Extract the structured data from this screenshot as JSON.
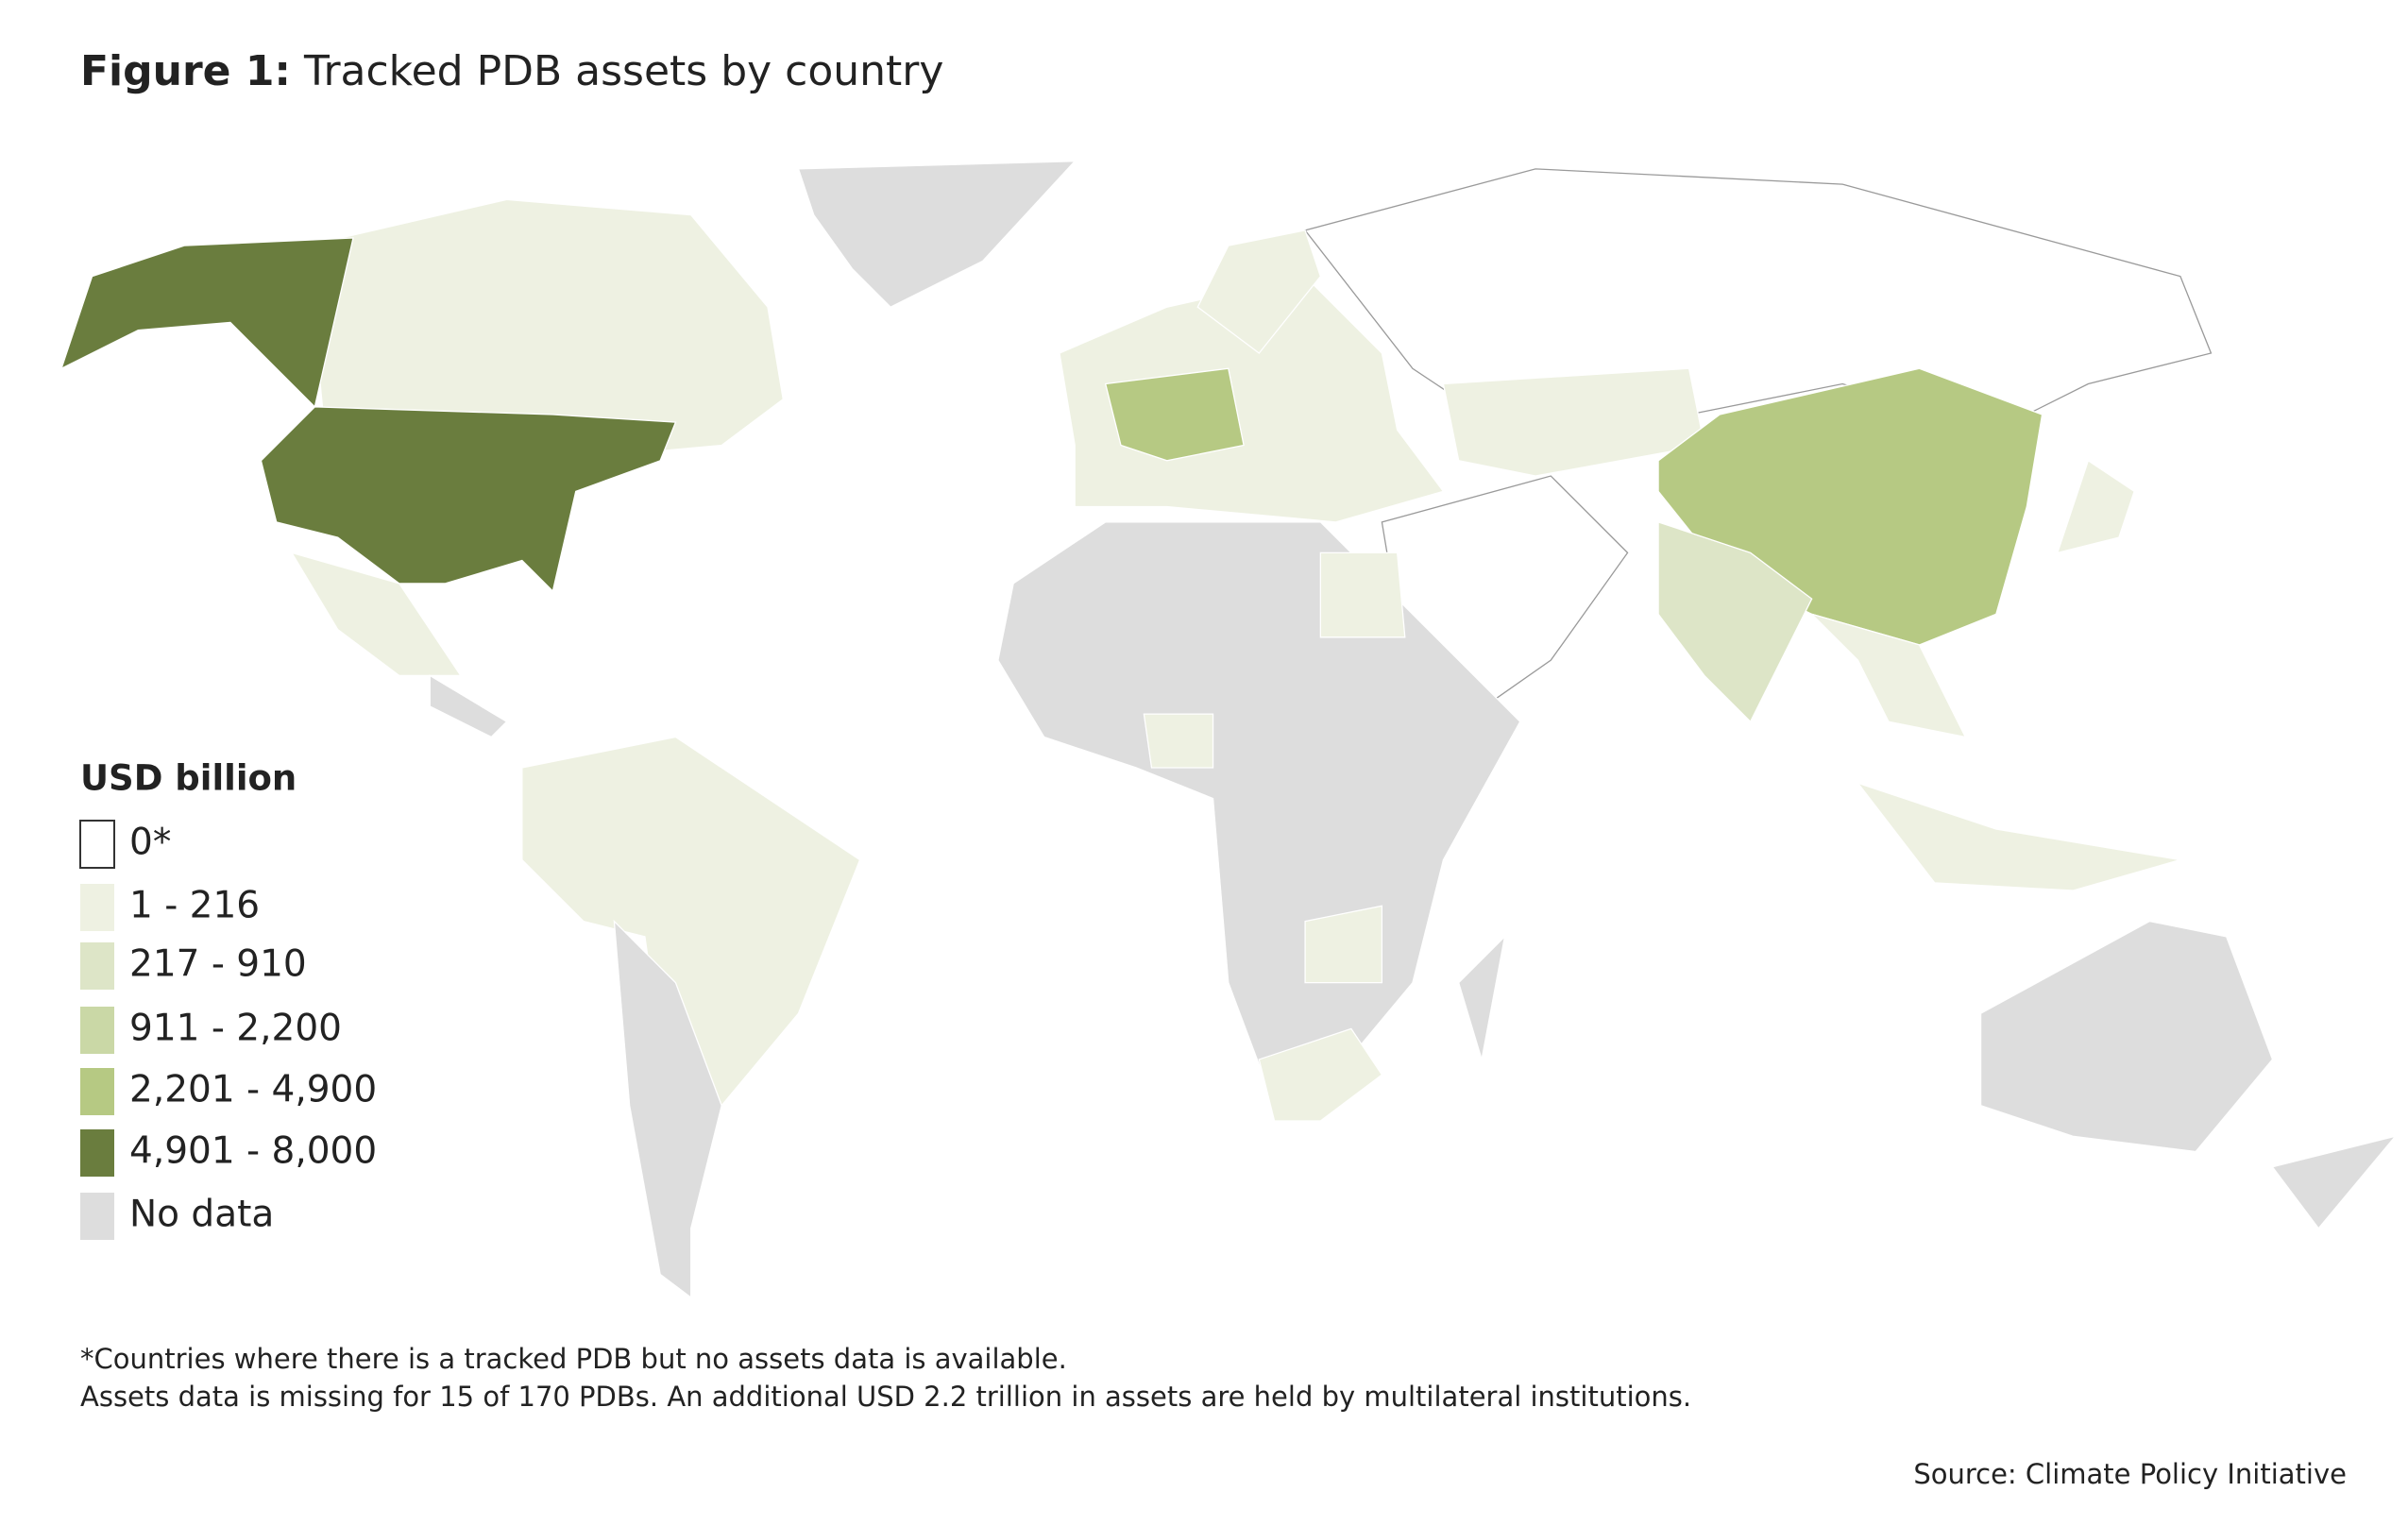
{
  "header": {
    "label": "Figure 1:",
    "title": "Tracked PDB assets by country"
  },
  "legend": {
    "title": "USD billion",
    "items": [
      {
        "label": "0*",
        "color": "#ffffff"
      },
      {
        "label": "1 - 216",
        "color": "#eef1e2"
      },
      {
        "label": "217 - 910",
        "color": "#dde5c7"
      },
      {
        "label": "911 - 2,200",
        "color": "#cad8a6"
      },
      {
        "label": "2,201 - 4,900",
        "color": "#b6c983"
      },
      {
        "label": "4,901 - 8,000",
        "color": "#6a7d3e"
      },
      {
        "label": "No data",
        "color": "#dddddd"
      }
    ]
  },
  "footnotes": [
    "*Countries where there is a tracked PDB but no assets data is available.",
    "Assets data is missing for 15 of 170 PDBs. An additional USD 2.2 trillion in assets are held by multilateral institutions."
  ],
  "source": "Source: Climate Policy Initiative"
}
